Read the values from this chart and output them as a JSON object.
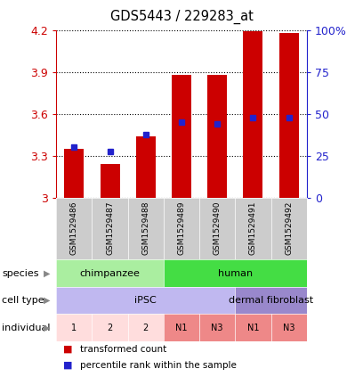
{
  "title": "GDS5443 / 229283_at",
  "samples": [
    "GSM1529486",
    "GSM1529487",
    "GSM1529488",
    "GSM1529489",
    "GSM1529490",
    "GSM1529491",
    "GSM1529492"
  ],
  "red_values": [
    3.35,
    3.24,
    3.44,
    3.88,
    3.88,
    4.19,
    4.18
  ],
  "blue_values": [
    3.36,
    3.33,
    3.45,
    3.54,
    3.53,
    3.575,
    3.575
  ],
  "ymin": 3.0,
  "ymax": 4.2,
  "yticks": [
    3.0,
    3.3,
    3.6,
    3.9,
    4.2
  ],
  "right_ytick_pcts": [
    0,
    25,
    50,
    75,
    100
  ],
  "right_ytick_labels": [
    "0",
    "25",
    "50",
    "75",
    "100%"
  ],
  "bar_color": "#cc0000",
  "dot_color": "#2222cc",
  "bg_color": "#ffffff",
  "plot_bg": "#ffffff",
  "grid_color": "#000000",
  "left_axis_color": "#cc0000",
  "right_axis_color": "#2222cc",
  "sample_box_color": "#cccccc",
  "species": [
    {
      "label": "chimpanzee",
      "start": 0,
      "end": 3,
      "color": "#aaeea0"
    },
    {
      "label": "human",
      "start": 3,
      "end": 7,
      "color": "#44dd44"
    }
  ],
  "cell_type": [
    {
      "label": "iPSC",
      "start": 0,
      "end": 5,
      "color": "#c0b8f0"
    },
    {
      "label": "dermal fibroblast",
      "start": 5,
      "end": 7,
      "color": "#9988cc"
    }
  ],
  "individual": [
    {
      "label": "1",
      "start": 0,
      "end": 1,
      "color": "#ffdddd"
    },
    {
      "label": "2",
      "start": 1,
      "end": 2,
      "color": "#ffdddd"
    },
    {
      "label": "2",
      "start": 2,
      "end": 3,
      "color": "#ffdddd"
    },
    {
      "label": "N1",
      "start": 3,
      "end": 4,
      "color": "#ee8888"
    },
    {
      "label": "N3",
      "start": 4,
      "end": 5,
      "color": "#ee8888"
    },
    {
      "label": "N1",
      "start": 5,
      "end": 6,
      "color": "#ee8888"
    },
    {
      "label": "N3",
      "start": 6,
      "end": 7,
      "color": "#ee8888"
    }
  ],
  "n_samples": 7,
  "legend_items": [
    {
      "color": "#cc0000",
      "label": "transformed count"
    },
    {
      "color": "#2222cc",
      "label": "percentile rank within the sample"
    }
  ]
}
